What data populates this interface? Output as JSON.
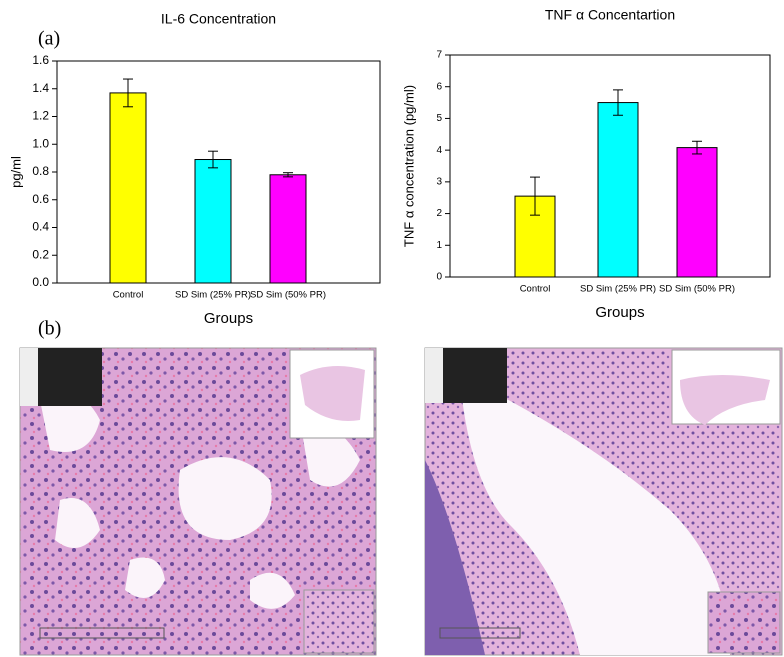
{
  "panel_labels": [
    "(a)",
    "(b)"
  ],
  "chart_data": [
    {
      "type": "bar",
      "title": "IL-6 Concentration",
      "xlabel": "Groups",
      "ylabel": "pg/ml",
      "categories": [
        "Control",
        "SD Sim (25% PR)",
        "SD Sim (50% PR)"
      ],
      "values": [
        1.37,
        0.89,
        0.78
      ],
      "errors": [
        0.1,
        0.06,
        0.015
      ],
      "colors": [
        "#ffff00",
        "#00ffff",
        "#ff00ff"
      ],
      "ylim": [
        0,
        1.6
      ],
      "yticks": [
        {
          "value": 0,
          "label": "0.0"
        },
        0.2,
        0.4,
        0.6,
        0.8,
        {
          "value": 1,
          "label": "1.0"
        },
        1.2,
        1.4,
        1.6
      ]
    },
    {
      "type": "bar",
      "title": "TNF α Concentartion",
      "xlabel": "Groups",
      "ylabel": "TNF α concentration (pg/ml)",
      "categories": [
        "Control",
        "SD Sim (25% PR)",
        "SD Sim (50% PR)"
      ],
      "values": [
        2.55,
        5.5,
        4.08
      ],
      "errors": [
        0.6,
        0.4,
        0.2
      ],
      "colors": [
        "#ffff00",
        "#00ffff",
        "#ff00ff"
      ],
      "ylim": [
        0,
        7
      ],
      "yticks": [
        0,
        1,
        2,
        3,
        4,
        5,
        6,
        7
      ]
    }
  ]
}
